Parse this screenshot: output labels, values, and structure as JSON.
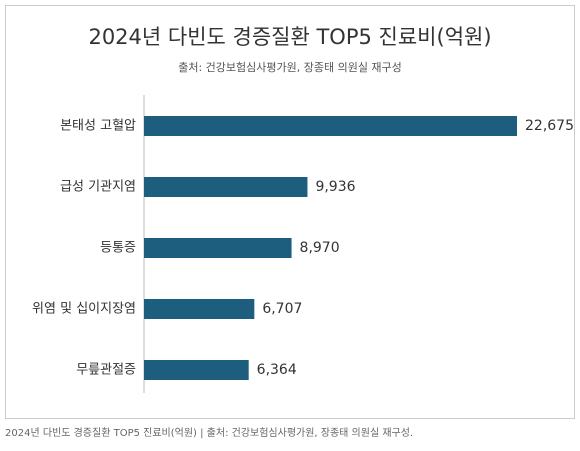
{
  "chart_data": {
    "type": "bar",
    "orientation": "horizontal",
    "title": "2024년 다빈도 경증질환 TOP5 진료비(억원)",
    "subtitle": "출처: 건강보험심사평가원, 장종태 의원실 재구성",
    "categories": [
      "본태성 고혈압",
      "급성 기관지염",
      "등통증",
      "위염 및 십이지장염",
      "무릎관절증"
    ],
    "values": [
      22675,
      9936,
      8970,
      6707,
      6364
    ],
    "value_labels": [
      "22,675",
      "9,936",
      "8,970",
      "6,707",
      "6,364"
    ],
    "color": "#1d5d7e"
  },
  "caption": "2024년 다빈도 경증질환 TOP5 진료비(억원) | 출처: 건강보험심사평가원, 장종태 의원실 재구성."
}
